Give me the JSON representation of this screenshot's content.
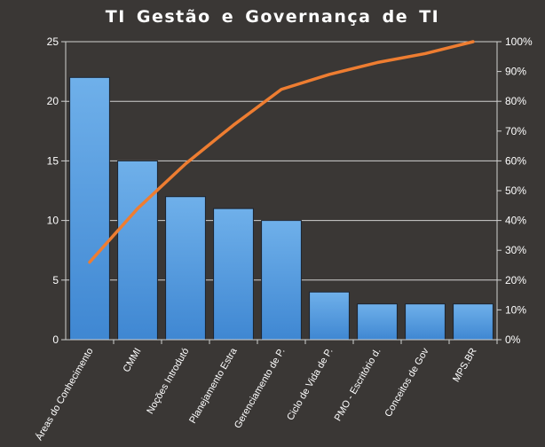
{
  "chart_data": {
    "type": "bar",
    "title": "TI Gestão  e Governança  de TI",
    "categories": [
      "Áreas do Conhecimento",
      "CMMI",
      "Noções Introdutó",
      "Planejamento Estra",
      "Gerenciamento de P.",
      "Ciclo de Vida de P.",
      "PMO - Escritório d.",
      "Conceitos de Gov",
      "MPS.BR"
    ],
    "series": [
      {
        "type": "bar",
        "values": [
          22,
          15,
          12,
          11,
          10,
          4,
          3,
          3,
          3
        ]
      },
      {
        "type": "line",
        "axis": "right",
        "values": [
          26,
          44,
          59,
          72,
          84,
          89,
          93,
          96,
          100
        ]
      }
    ],
    "y_left": {
      "lim": [
        0,
        25
      ],
      "ticks": [
        "0",
        "5",
        "10",
        "15",
        "20",
        "25"
      ]
    },
    "y_right": {
      "lim": [
        0,
        100
      ],
      "ticks": [
        "0%",
        "10%",
        "20%",
        "30%",
        "40%",
        "50%",
        "60%",
        "70%",
        "80%",
        "90%",
        "100%"
      ]
    },
    "grid": true,
    "legend": "none",
    "colors": {
      "background": "#3a3735",
      "bar_top": "#6fb0ea",
      "bar_bottom": "#3f87d2",
      "bar_edge": "#1c2430",
      "line": "#ee7d31",
      "grid": "#d0d0d0",
      "text": "#ffffff"
    }
  }
}
